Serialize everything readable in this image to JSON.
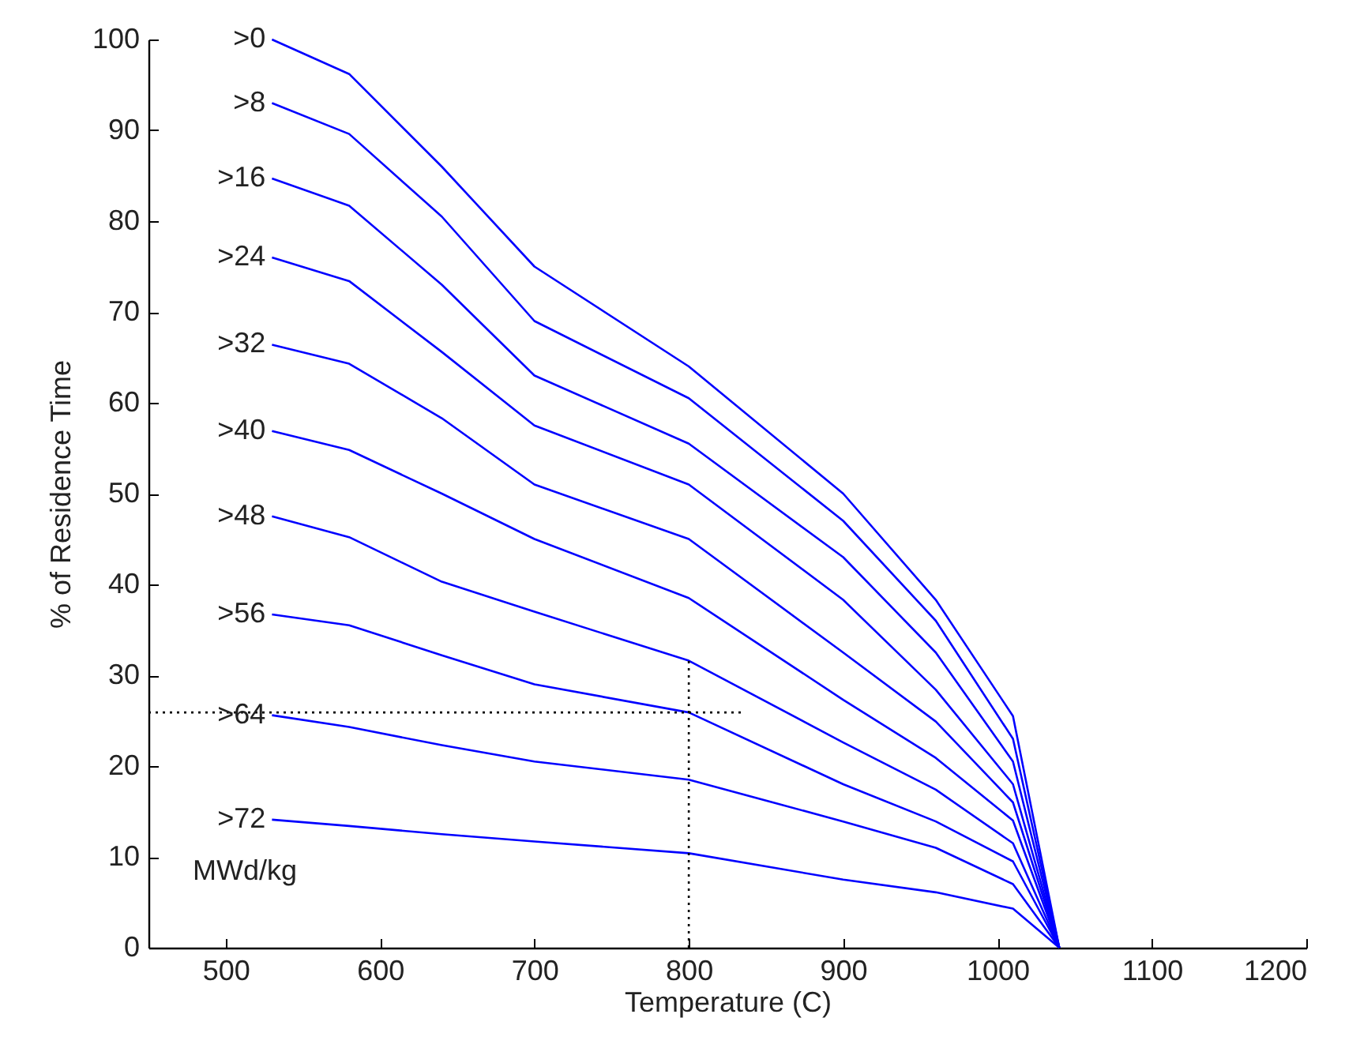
{
  "chart_data": {
    "type": "line",
    "xlabel": "Temperature (C)",
    "ylabel": "% of Residence Time",
    "annotations": [
      "MWd/kg"
    ],
    "x": [
      530,
      580,
      640,
      700,
      800,
      900,
      960,
      1010,
      1040
    ],
    "xlim": [
      450,
      1200
    ],
    "xticks": [
      500,
      600,
      700,
      800,
      900,
      1000,
      1100,
      1200
    ],
    "ylim": [
      0,
      100
    ],
    "yticks": [
      0,
      10,
      20,
      30,
      40,
      50,
      60,
      70,
      80,
      90,
      100
    ],
    "grid": false,
    "marker": "none",
    "series": [
      {
        "name": ">0",
        "color": "#0000ff",
        "values": [
          100,
          96.2,
          86,
          75,
          64,
          50,
          38.3,
          25.5,
          0
        ]
      },
      {
        "name": ">8",
        "color": "#0000ff",
        "values": [
          93,
          89.6,
          80.5,
          69,
          60.5,
          47,
          36,
          23,
          0
        ]
      },
      {
        "name": ">16",
        "color": "#0000ff",
        "values": [
          84.7,
          81.7,
          73,
          63,
          55.5,
          43,
          32.5,
          20.5,
          0
        ]
      },
      {
        "name": ">24",
        "color": "#0000ff",
        "values": [
          76,
          73.4,
          65.6,
          57.5,
          51,
          38.3,
          28.4,
          18,
          0
        ]
      },
      {
        "name": ">32",
        "color": "#0000ff",
        "values": [
          66.4,
          64.3,
          58.3,
          51,
          45,
          32.5,
          24.9,
          16,
          0
        ]
      },
      {
        "name": ">40",
        "color": "#0000ff",
        "values": [
          56.9,
          54.8,
          50,
          45,
          38.5,
          27.3,
          20.9,
          14,
          0
        ]
      },
      {
        "name": ">48",
        "color": "#0000ff",
        "values": [
          47.5,
          45.2,
          40.3,
          37,
          31.6,
          22.6,
          17.4,
          11.5,
          0
        ]
      },
      {
        "name": ">56",
        "color": "#0000ff",
        "values": [
          36.7,
          35.5,
          32.2,
          29,
          25.9,
          18,
          13.9,
          9.5,
          0
        ]
      },
      {
        "name": ">64",
        "color": "#0000ff",
        "values": [
          25.6,
          24.3,
          22.3,
          20.5,
          18.5,
          13.9,
          11,
          7,
          0
        ]
      },
      {
        "name": ">72",
        "color": "#0000ff",
        "values": [
          14.1,
          13.4,
          12.5,
          11.7,
          10.4,
          7.5,
          6.1,
          4.3,
          0
        ]
      },
      {
        "color": "#000000",
        "line_style": "dotted",
        "x": [
          450,
          835
        ],
        "values": [
          25.9,
          25.9
        ]
      },
      {
        "color": "#000000",
        "line_style": "dotted",
        "x": [
          800,
          800
        ],
        "values": [
          0,
          31.6
        ]
      }
    ]
  }
}
